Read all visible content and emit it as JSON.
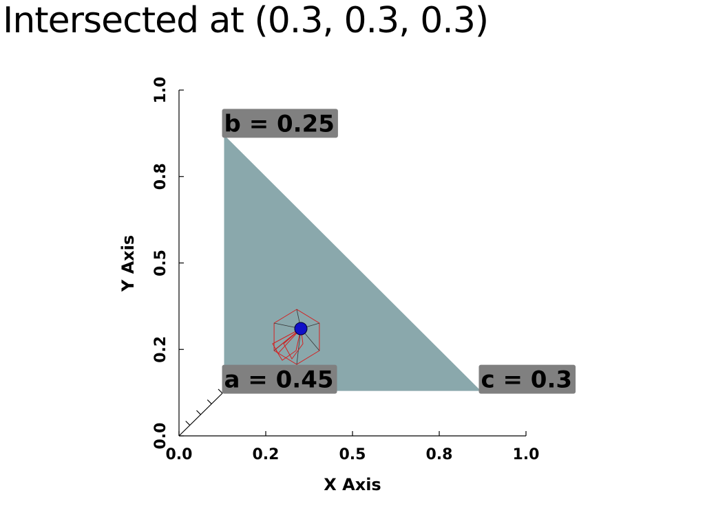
{
  "title": "Intersected at (0.3, 0.3, 0.3)",
  "colors": {
    "triangle": "#8aa8ac",
    "label_background": "#808080",
    "marker": "#1010c8",
    "wireframe": "#d42020",
    "axis": "#000000"
  },
  "chart_data": {
    "type": "scatter",
    "title": "Intersected at (0.3, 0.3, 0.3)",
    "xlabel": "X Axis",
    "ylabel": "Y Axis",
    "xlim": [
      0.0,
      1.0
    ],
    "ylim": [
      0.0,
      1.0
    ],
    "x_ticks": [
      0.0,
      0.25,
      0.5,
      0.75,
      1.0
    ],
    "x_tick_labels": [
      "0.0",
      "0.2",
      "0.5",
      "0.8",
      "1.0"
    ],
    "y_ticks": [
      0.0,
      0.25,
      0.5,
      0.75,
      1.0
    ],
    "y_tick_labels": [
      "0.0",
      "0.2",
      "0.5",
      "0.8",
      "1.0"
    ],
    "grid": false,
    "triangle": {
      "vertices": [
        {
          "name": "a",
          "label": "a = 0.45",
          "x": 0.13,
          "y": 0.13
        },
        {
          "name": "b",
          "label": "b = 0.25",
          "x": 0.13,
          "y": 0.87
        },
        {
          "name": "c",
          "label": "c = 0.3",
          "x": 0.87,
          "y": 0.13
        }
      ]
    },
    "intersection_point": {
      "x": 0.3,
      "y": 0.3,
      "z": 0.3
    }
  }
}
